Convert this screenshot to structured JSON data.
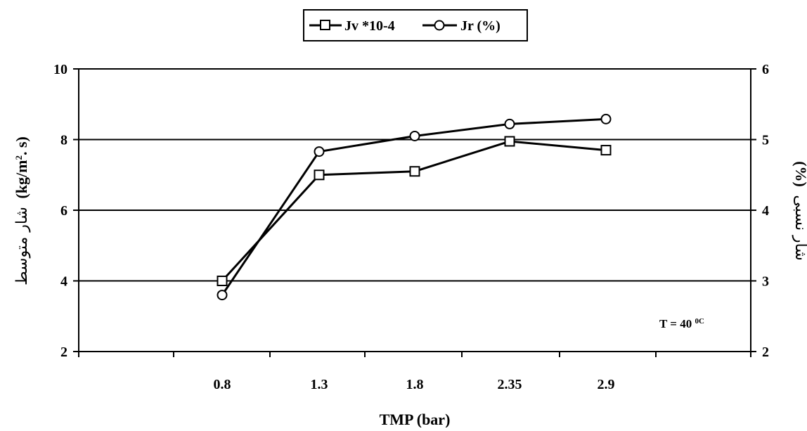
{
  "chart_data": {
    "type": "line",
    "categories": [
      "0.8",
      "1.3",
      "1.8",
      "2.35",
      "2.9"
    ],
    "series": [
      {
        "name": "Jv *10-4",
        "marker": "square",
        "axis": "left",
        "values": [
          4.0,
          7.0,
          7.1,
          7.95,
          7.7
        ]
      },
      {
        "name": "Jr (%)",
        "marker": "circle",
        "axis": "right",
        "values": [
          2.8,
          4.83,
          5.05,
          5.22,
          5.29
        ]
      }
    ],
    "xlabel": "TMP (bar)",
    "ylabel_left": {
      "arabic": "شار متوسط",
      "latin": "(kg/m",
      "sup": "2",
      "tail": ". s)"
    },
    "ylabel_right": {
      "arabic": "شار نسبی",
      "latin": "(%)"
    },
    "ylim_left": [
      2,
      10
    ],
    "ylim_right": [
      2,
      6
    ],
    "yticks_left": [
      "2",
      "4",
      "6",
      "8",
      "10"
    ],
    "yticks_right": [
      "2",
      "3",
      "4",
      "5",
      "6"
    ],
    "grid": "horizontal",
    "legend_position": "top-center",
    "annotation": {
      "text": "T = 40 ",
      "sup": "0C"
    },
    "colors": {
      "line": "#000000",
      "marker_fill": "#ffffff",
      "background": "#ffffff"
    }
  }
}
